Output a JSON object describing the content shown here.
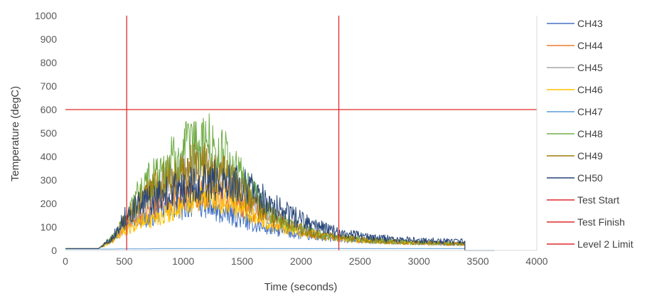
{
  "chart_data": {
    "type": "line",
    "xlabel": "Time (seconds)",
    "ylabel": "Temperature (degC)",
    "xlim": [
      0,
      4000
    ],
    "ylim": [
      0,
      1000
    ],
    "x_ticks": [
      "0",
      "500",
      "1000",
      "1500",
      "2000",
      "2500",
      "3000",
      "3500",
      "4000"
    ],
    "y_ticks": [
      "0",
      "100",
      "200",
      "300",
      "400",
      "500",
      "600",
      "700",
      "800",
      "900",
      "1000"
    ],
    "grid": false,
    "legend_position": "right",
    "series": [
      {
        "name": "CH43",
        "color": "#4472C4",
        "x": [
          0,
          280,
          400,
          500,
          600,
          700,
          800,
          900,
          1000,
          1100,
          1200,
          1300,
          1400,
          1500,
          1600,
          1700,
          1800,
          1900,
          2000,
          2100,
          2200,
          2300,
          2400,
          2500,
          2600,
          2700,
          2800,
          2900,
          3000,
          3100,
          3200,
          3300,
          3390
        ],
        "y": [
          8,
          8,
          50,
          110,
          150,
          130,
          170,
          190,
          180,
          210,
          190,
          160,
          150,
          130,
          110,
          95,
          85,
          75,
          65,
          58,
          52,
          48,
          44,
          42,
          40,
          38,
          36,
          34,
          33,
          32,
          31,
          30,
          30
        ]
      },
      {
        "name": "CH44",
        "color": "#ED7D31",
        "x": [
          0,
          280,
          400,
          500,
          600,
          700,
          800,
          900,
          1000,
          1100,
          1200,
          1300,
          1400,
          1500,
          1600,
          1700,
          1800,
          1900,
          2000,
          2100,
          2200,
          2300,
          2400,
          2500,
          2600,
          2700,
          2800,
          2900,
          3000,
          3100,
          3200,
          3300,
          3390
        ],
        "y": [
          8,
          8,
          45,
          100,
          140,
          170,
          200,
          220,
          240,
          260,
          250,
          240,
          230,
          200,
          170,
          140,
          120,
          100,
          85,
          72,
          62,
          55,
          50,
          46,
          42,
          40,
          37,
          35,
          33,
          31,
          30,
          29,
          28
        ]
      },
      {
        "name": "CH45",
        "color": "#A5A5A5",
        "x": [
          0,
          280,
          400,
          500,
          600,
          700,
          800,
          900,
          1000,
          1100,
          1200,
          1300,
          1400,
          1500,
          1600,
          1700,
          1800,
          1900,
          2000,
          2100,
          2200,
          2300,
          2400,
          2500,
          2600,
          2700,
          2800,
          2900,
          3000,
          3100,
          3200,
          3300,
          3390
        ],
        "y": [
          8,
          8,
          50,
          110,
          170,
          220,
          260,
          300,
          330,
          350,
          360,
          330,
          300,
          250,
          200,
          160,
          130,
          110,
          90,
          75,
          64,
          56,
          50,
          46,
          42,
          39,
          37,
          35,
          33,
          31,
          30,
          29,
          28
        ]
      },
      {
        "name": "CH46",
        "color": "#FFC000",
        "x": [
          0,
          280,
          400,
          500,
          600,
          700,
          800,
          900,
          1000,
          1100,
          1200,
          1300,
          1400,
          1500,
          1600,
          1700,
          1800,
          1900,
          2000,
          2100,
          2200,
          2300,
          2400,
          2500,
          2600,
          2700,
          2800,
          2900,
          3000,
          3100,
          3200,
          3300,
          3390
        ],
        "y": [
          8,
          8,
          40,
          90,
          110,
          130,
          150,
          170,
          190,
          210,
          230,
          220,
          200,
          180,
          150,
          125,
          105,
          90,
          78,
          67,
          58,
          52,
          47,
          44,
          41,
          38,
          36,
          34,
          32,
          31,
          30,
          29,
          28
        ]
      },
      {
        "name": "CH47",
        "color": "#5B9BD5",
        "x": [
          0,
          280,
          400,
          500,
          600,
          700,
          800,
          900,
          1000,
          1100,
          1200,
          1300,
          1400,
          1500,
          1600,
          1700,
          1800,
          1900,
          2000,
          2100,
          2200,
          2300,
          2400,
          2500,
          2600,
          2700,
          2800,
          2900,
          3000,
          3100,
          3200,
          3300,
          3390
        ],
        "y": [
          6,
          6,
          6,
          7,
          7,
          7,
          8,
          8,
          8,
          8,
          8,
          8,
          8,
          8,
          8,
          8,
          8,
          8,
          8,
          8,
          8,
          8,
          8,
          8,
          8,
          8,
          8,
          8,
          8,
          8,
          8,
          8,
          8
        ]
      },
      {
        "name": "CH48",
        "color": "#70AD47",
        "x": [
          0,
          280,
          400,
          500,
          600,
          700,
          800,
          900,
          1000,
          1100,
          1200,
          1300,
          1400,
          1500,
          1600,
          1700,
          1800,
          1900,
          2000,
          2100,
          2200,
          2300,
          2400,
          2500,
          2600,
          2700,
          2800,
          2900,
          3000,
          3100,
          3200,
          3300,
          3390
        ],
        "y": [
          8,
          8,
          55,
          130,
          220,
          290,
          340,
          380,
          420,
          440,
          460,
          420,
          380,
          300,
          230,
          180,
          140,
          115,
          95,
          78,
          66,
          58,
          52,
          47,
          43,
          40,
          37,
          35,
          33,
          31,
          30,
          29,
          28
        ]
      },
      {
        "name": "CH49",
        "color": "#9E7C0C",
        "x": [
          0,
          280,
          400,
          500,
          600,
          700,
          800,
          900,
          1000,
          1100,
          1200,
          1300,
          1400,
          1500,
          1600,
          1700,
          1800,
          1900,
          2000,
          2100,
          2200,
          2300,
          2400,
          2500,
          2600,
          2700,
          2800,
          2900,
          3000,
          3100,
          3200,
          3300,
          3390
        ],
        "y": [
          8,
          8,
          50,
          120,
          190,
          250,
          290,
          320,
          340,
          360,
          350,
          330,
          300,
          250,
          200,
          165,
          135,
          112,
          92,
          76,
          64,
          56,
          50,
          46,
          42,
          39,
          37,
          35,
          33,
          31,
          30,
          29,
          28
        ]
      },
      {
        "name": "CH50",
        "color": "#264478",
        "x": [
          0,
          280,
          400,
          500,
          600,
          700,
          800,
          900,
          1000,
          1100,
          1200,
          1300,
          1400,
          1500,
          1600,
          1700,
          1800,
          1900,
          2000,
          2100,
          2200,
          2300,
          2400,
          2500,
          2600,
          2700,
          2800,
          2900,
          3000,
          3100,
          3200,
          3300,
          3390
        ],
        "y": [
          8,
          8,
          55,
          140,
          190,
          210,
          230,
          250,
          260,
          280,
          290,
          300,
          300,
          290,
          250,
          210,
          180,
          155,
          130,
          110,
          95,
          80,
          70,
          62,
          56,
          52,
          48,
          45,
          43,
          42,
          41,
          40,
          40
        ]
      }
    ],
    "reference_lines": [
      {
        "name": "Test Start",
        "color": "#E0282B",
        "orientation": "vertical",
        "x": 520
      },
      {
        "name": "Test Finish",
        "color": "#E0282B",
        "orientation": "vertical",
        "x": 2320
      },
      {
        "name": "Level 2 Limit",
        "color": "#E0282B",
        "orientation": "horizontal",
        "y": 600
      }
    ]
  }
}
